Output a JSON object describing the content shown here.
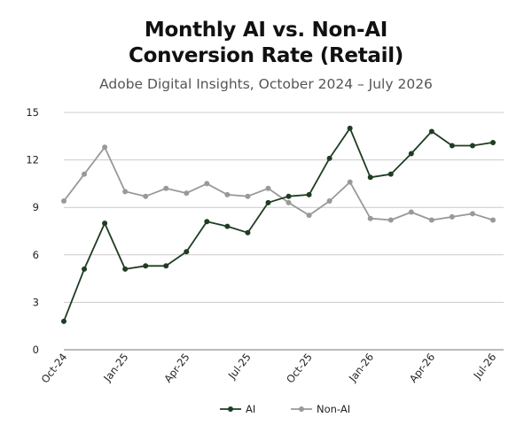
{
  "chart_data": {
    "type": "line",
    "title_line1": "Monthly AI vs. Non-AI",
    "title_line2": "Conversion Rate (Retail)",
    "subtitle": "Adobe Digital Insights, October 2024 – July 2026",
    "x": [
      "Oct-24",
      "Nov-24",
      "Dec-24",
      "Jan-25",
      "Feb-25",
      "Mar-25",
      "Apr-25",
      "May-25",
      "Jun-25",
      "Jul-25",
      "Aug-25",
      "Sep-25",
      "Oct-25",
      "Nov-25",
      "Dec-25",
      "Jan-26",
      "Feb-26",
      "Mar-26",
      "Apr-26",
      "May-26",
      "Jun-26",
      "Jul-26"
    ],
    "x_tick_labels": [
      "Oct-24",
      "Jan-25",
      "Apr-25",
      "Jul-25",
      "Oct-25",
      "Jan-26",
      "Apr-26",
      "Jul-26"
    ],
    "y_ticks": [
      0,
      3,
      6,
      9,
      12,
      15
    ],
    "ylim": [
      0,
      15
    ],
    "grid": true,
    "legend_position": "bottom-center",
    "series": [
      {
        "name": "AI",
        "color": "#1f3d22",
        "values": [
          1.8,
          5.1,
          8.0,
          5.1,
          5.3,
          5.3,
          6.2,
          8.1,
          7.8,
          7.4,
          9.3,
          9.7,
          9.8,
          12.1,
          14.0,
          10.9,
          11.1,
          12.4,
          13.8,
          12.9,
          12.9,
          13.1
        ]
      },
      {
        "name": "Non-AI",
        "color": "#999999",
        "values": [
          9.4,
          11.1,
          12.8,
          10.0,
          9.7,
          10.2,
          9.9,
          10.5,
          9.8,
          9.7,
          10.2,
          9.3,
          8.5,
          9.4,
          10.6,
          8.3,
          8.2,
          8.7,
          8.2,
          8.4,
          8.6,
          8.2
        ]
      }
    ]
  }
}
